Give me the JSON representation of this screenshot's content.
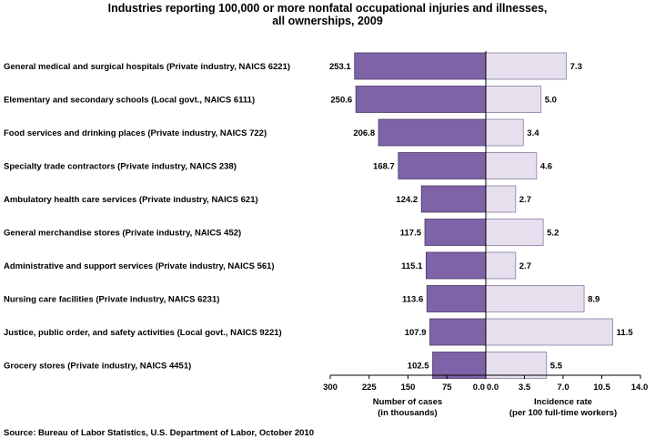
{
  "chart_data": {
    "type": "bar",
    "title_lines": [
      "Industries reporting 100,000 or more nonfatal occupational injuries and illnesses,",
      "all ownerships, 2009"
    ],
    "categories": [
      "General medical and surgical hospitals (Private industry, NAICS 6221)",
      "Elementary and secondary schools (Local govt., NAICS 6111)",
      "Food services and drinking places (Private industry, NAICS 722)",
      "Specialty trade contractors (Private industry, NAICS 238)",
      "Ambulatory health care services (Private industry, NAICS 621)",
      "General merchandise stores (Private industry, NAICS 452)",
      "Administrative and support services (Private industry, NAICS 561)",
      "Nursing care facilities (Private industry, NAICS 6231)",
      "Justice, public order, and safety activities (Local govt., NAICS 9221)",
      "Grocery stores (Private industry, NAICS 4451)"
    ],
    "series": [
      {
        "values": [
          253.1,
          250.6,
          206.8,
          168.7,
          124.2,
          117.5,
          115.1,
          113.6,
          107.9,
          102.5
        ],
        "labels": [
          "253.1",
          "250.6",
          "206.8",
          "168.7",
          "124.2",
          "117.5",
          "115.1",
          "113.6",
          "107.9",
          "102.5"
        ],
        "color": "#7f63a8"
      },
      {
        "values": [
          7.3,
          5.0,
          3.4,
          4.6,
          2.7,
          5.2,
          2.7,
          8.9,
          11.5,
          5.5
        ],
        "labels": [
          "7.3",
          "5.0",
          "3.4",
          "4.6",
          "2.7",
          "5.2",
          "2.7",
          "8.9",
          "11.5",
          "5.5"
        ],
        "color": "#e6e0ee"
      }
    ],
    "left_axis": {
      "range": [
        300,
        0
      ],
      "ticks": [
        "300",
        "225",
        "150",
        "75",
        "0.0"
      ],
      "label_lines": [
        "Number of cases",
        "(in thousands)"
      ]
    },
    "right_axis": {
      "range": [
        0,
        14
      ],
      "ticks": [
        "0.0",
        "3.5",
        "7.0",
        "10.5",
        "14.0"
      ],
      "label_lines": [
        "Incidence rate",
        "(per 100 full-time workers)"
      ]
    },
    "grid": false,
    "legend": "none"
  },
  "source": "Source:  Bureau of Labor Statistics, U.S. Department of Labor, October 2010"
}
